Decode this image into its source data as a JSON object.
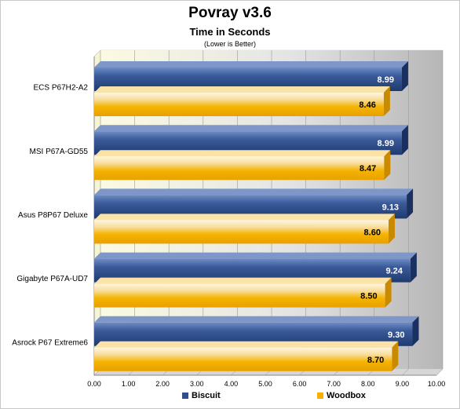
{
  "chart_data": {
    "type": "bar",
    "orientation": "horizontal",
    "title": "Povray v3.6",
    "subtitle": "Time in Seconds",
    "note": "(Lower is Better)",
    "categories": [
      "ECS P67H2-A2",
      "MSI P67A-GD55",
      "Asus P8P67 Deluxe",
      "Gigabyte P67A-UD7",
      "Asrock P67 Extreme6"
    ],
    "series": [
      {
        "name": "Biscuit",
        "values": [
          8.99,
          8.99,
          9.13,
          9.24,
          9.3
        ],
        "labels": [
          "8.99",
          "8.99",
          "9.13",
          "9.24",
          "9.30"
        ],
        "color": "#2e4f8c"
      },
      {
        "name": "Woodbox",
        "values": [
          8.46,
          8.47,
          8.6,
          8.5,
          8.7
        ],
        "labels": [
          "8.46",
          "8.47",
          "8.60",
          "8.50",
          "8.70"
        ],
        "color": "#f5b000"
      }
    ],
    "xlim": [
      0,
      10
    ],
    "xticks": [
      "0.00",
      "1.00",
      "2.00",
      "3.00",
      "4.00",
      "5.00",
      "6.00",
      "7.00",
      "8.00",
      "9.00",
      "10.00"
    ],
    "grid": true,
    "legend_position": "bottom"
  }
}
